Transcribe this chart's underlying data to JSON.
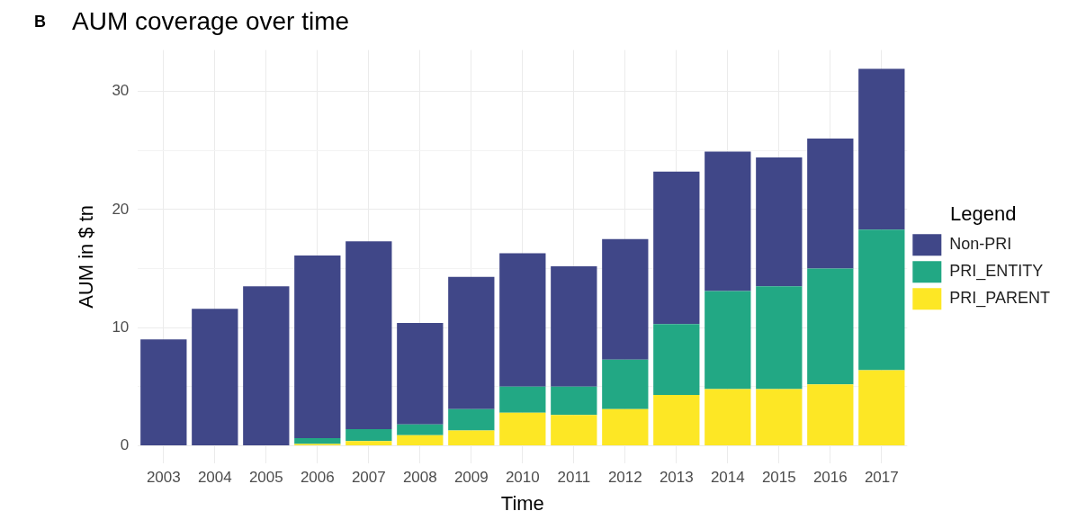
{
  "chart_data": {
    "type": "bar",
    "title": "AUM coverage over time",
    "xlabel": "Time",
    "ylabel": "AUM in $ tn",
    "legend_title": "Legend",
    "annotations": [
      "B"
    ],
    "categories": [
      "2003",
      "2004",
      "2005",
      "2006",
      "2007",
      "2008",
      "2009",
      "2010",
      "2011",
      "2012",
      "2013",
      "2014",
      "2015",
      "2016",
      "2017"
    ],
    "stacked": true,
    "series": [
      {
        "name": "PRI_PARENT",
        "color": "#fde725",
        "values": [
          0,
          0,
          0,
          0.15,
          0.4,
          0.9,
          1.3,
          2.8,
          2.6,
          3.1,
          4.3,
          4.8,
          4.8,
          5.2,
          6.4
        ]
      },
      {
        "name": "PRI_ENTITY",
        "color": "#22a884",
        "values": [
          0,
          0,
          0,
          0.5,
          1.0,
          0.9,
          1.8,
          2.2,
          2.4,
          4.2,
          6.0,
          8.3,
          8.7,
          9.8,
          11.9
        ]
      },
      {
        "name": "Non-PRI",
        "color": "#404788",
        "values": [
          9.0,
          11.6,
          13.5,
          15.45,
          15.9,
          8.6,
          11.2,
          11.3,
          10.2,
          10.2,
          12.9,
          11.8,
          10.9,
          11.0,
          13.6
        ]
      }
    ],
    "ylim": [
      -1.5,
      33.5
    ],
    "yticks": [
      0,
      {
        "value": 5,
        "label": null
      },
      10,
      {
        "value": 15,
        "label": null
      },
      20,
      {
        "value": 25,
        "label": null
      },
      30
    ],
    "grid": true,
    "legend": "right"
  }
}
